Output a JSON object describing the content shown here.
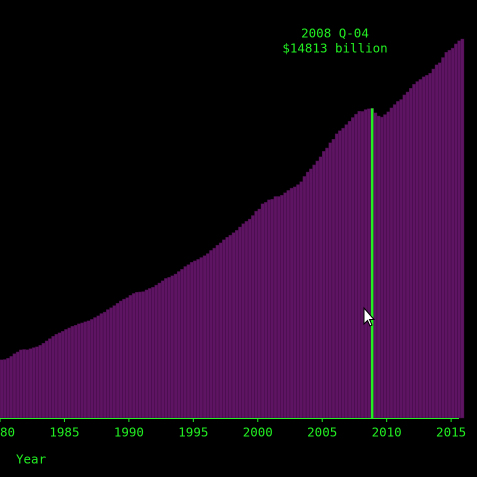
{
  "chart_data": {
    "type": "bar",
    "x_label": "Year",
    "tooltip": {
      "label": "2008 Q-04",
      "value_label": "$14813 billion",
      "index": 115
    },
    "color": "#5e1462",
    "xlim": [
      1980,
      2016
    ],
    "xticks": [
      {
        "value": 1980,
        "label": "80"
      },
      1985,
      1990,
      1995,
      2000,
      2005,
      2010,
      2015
    ],
    "ylim": [
      0,
      20000
    ],
    "x": [
      1980,
      1980.25,
      1980.5,
      1980.75,
      1981,
      1981.25,
      1981.5,
      1981.75,
      1982,
      1982.25,
      1982.5,
      1982.75,
      1983,
      1983.25,
      1983.5,
      1983.75,
      1984,
      1984.25,
      1984.5,
      1984.75,
      1985,
      1985.25,
      1985.5,
      1985.75,
      1986,
      1986.25,
      1986.5,
      1986.75,
      1987,
      1987.25,
      1987.5,
      1987.75,
      1988,
      1988.25,
      1988.5,
      1988.75,
      1989,
      1989.25,
      1989.5,
      1989.75,
      1990,
      1990.25,
      1990.5,
      1990.75,
      1991,
      1991.25,
      1991.5,
      1991.75,
      1992,
      1992.25,
      1992.5,
      1992.75,
      1993,
      1993.25,
      1993.5,
      1993.75,
      1994,
      1994.25,
      1994.5,
      1994.75,
      1995,
      1995.25,
      1995.5,
      1995.75,
      1996,
      1996.25,
      1996.5,
      1996.75,
      1997,
      1997.25,
      1997.5,
      1997.75,
      1998,
      1998.25,
      1998.5,
      1998.75,
      1999,
      1999.25,
      1999.5,
      1999.75,
      2000,
      2000.25,
      2000.5,
      2000.75,
      2001,
      2001.25,
      2001.5,
      2001.75,
      2002,
      2002.25,
      2002.5,
      2002.75,
      2003,
      2003.25,
      2003.5,
      2003.75,
      2004,
      2004.25,
      2004.5,
      2004.75,
      2005,
      2005.25,
      2005.5,
      2005.75,
      2006,
      2006.25,
      2006.5,
      2006.75,
      2007,
      2007.25,
      2007.5,
      2007.75,
      2008,
      2008.25,
      2008.5,
      2008.75,
      2009,
      2009.25,
      2009.5,
      2009.75,
      2010,
      2010.25,
      2010.5,
      2010.75,
      2011,
      2011.25,
      2011.5,
      2011.75,
      2012,
      2012.25,
      2012.5,
      2012.75,
      2013,
      2013.25,
      2013.5,
      2013.75,
      2014,
      2014.25,
      2014.5,
      2014.75,
      2015,
      2015.25,
      2015.5,
      2015.75
    ],
    "values": [
      2790,
      2800,
      2860,
      2950,
      3080,
      3160,
      3260,
      3280,
      3270,
      3320,
      3370,
      3410,
      3480,
      3580,
      3690,
      3800,
      3910,
      4010,
      4080,
      4150,
      4240,
      4310,
      4390,
      4440,
      4510,
      4550,
      4610,
      4650,
      4720,
      4810,
      4890,
      5000,
      5070,
      5190,
      5280,
      5380,
      5490,
      5600,
      5690,
      5760,
      5870,
      5960,
      6020,
      6030,
      6050,
      6130,
      6200,
      6260,
      6360,
      6460,
      6570,
      6680,
      6730,
      6810,
      6890,
      7010,
      7120,
      7250,
      7340,
      7450,
      7520,
      7590,
      7680,
      7770,
      7870,
      8020,
      8130,
      8270,
      8380,
      8530,
      8650,
      8750,
      8870,
      8980,
      9140,
      9300,
      9410,
      9520,
      9690,
      9900,
      10000,
      10250,
      10320,
      10440,
      10470,
      10600,
      10600,
      10660,
      10780,
      10890,
      11000,
      11060,
      11170,
      11310,
      11560,
      11770,
      11920,
      12110,
      12300,
      12500,
      12760,
      12920,
      13170,
      13340,
      13600,
      13750,
      13870,
      14040,
      14200,
      14380,
      14540,
      14680,
      14670,
      14760,
      14800,
      14813,
      14600,
      14450,
      14400,
      14520,
      14650,
      14840,
      15000,
      15150,
      15240,
      15460,
      15600,
      15780,
      15970,
      16100,
      16200,
      16330,
      16400,
      16500,
      16700,
      16900,
      17000,
      17250,
      17500,
      17600,
      17700,
      17900,
      18050,
      18134
    ]
  }
}
